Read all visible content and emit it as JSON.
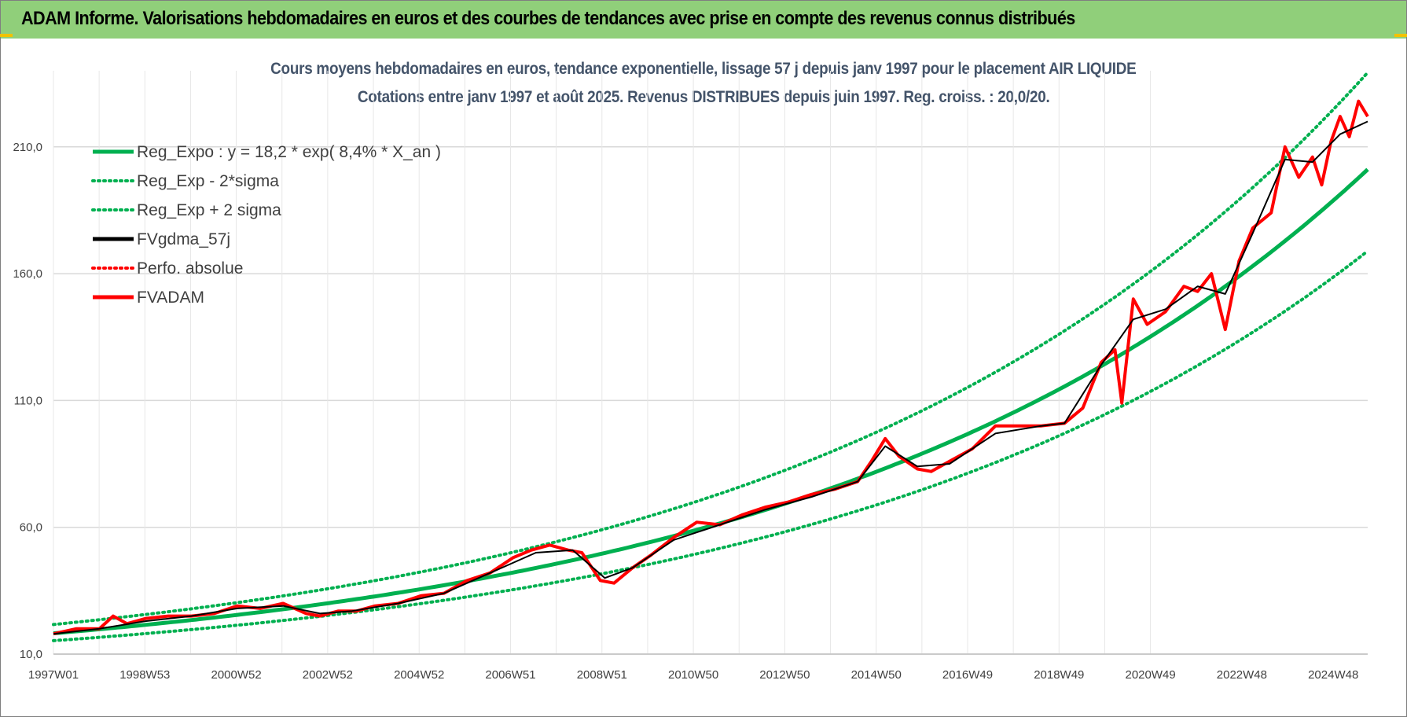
{
  "header": {
    "title": "ADAM Informe. Valorisations hebdomadaires en euros et des courbes de tendances avec prise en compte des revenus connus distribués"
  },
  "colors": {
    "header_bg": "#90cf7a",
    "reg_green": "#00b050",
    "fvgdma_black": "#000000",
    "fvadam_red": "#ff0000",
    "grid": "#d9d9d9"
  },
  "chart_data": {
    "type": "line",
    "title_line1": "Cours moyens hebdomadaires en euros, tendance exponentielle, lissage 57 j depuis janv 1997  pour le placement AIR LIQUIDE",
    "title_line2": "Cotations entre janv 1997 et août 2025. Revenus DISTRIBUES depuis juin 1997. Reg. croiss. : 20,0/20.",
    "x_tick_labels": [
      "1997W01",
      "1998W53",
      "2000W52",
      "2002W52",
      "2004W52",
      "2006W51",
      "2008W51",
      "2010W50",
      "2012W50",
      "2014W50",
      "2016W49",
      "2018W49",
      "2020W49",
      "2022W48",
      "2024W48"
    ],
    "x_range_years": [
      1997.0,
      2025.6
    ],
    "y_tick_labels": [
      "10,0",
      "60,0",
      "110,0",
      "160,0",
      "210,0"
    ],
    "y_ticks": [
      10,
      60,
      110,
      160,
      210
    ],
    "ylim": [
      10,
      240
    ],
    "grid": true,
    "legend_position": "top-left",
    "legend": [
      {
        "label": "Reg_Expo : y = 18,2 * exp( 8,4% *  X_an )",
        "color": "#00b050",
        "style": "solid"
      },
      {
        "label": "Reg_Exp - 2*sigma",
        "color": "#00b050",
        "style": "dotted"
      },
      {
        "label": "Reg_Exp + 2 sigma",
        "color": "#00b050",
        "style": "dotted"
      },
      {
        "label": "FVgdma_57j",
        "color": "#000000",
        "style": "solid"
      },
      {
        "label": "Perfo. absolue",
        "color": "#ff0000",
        "style": "dotted"
      },
      {
        "label": "FVADAM",
        "color": "#ff0000",
        "style": "solid"
      }
    ],
    "regression": {
      "a": 18.2,
      "rate": 0.084,
      "lower_factor": 0.84,
      "upper_factor": 1.19
    },
    "fvadam_series": {
      "x": [
        1997.0,
        1997.5,
        1998.0,
        1998.3,
        1998.6,
        1999.0,
        1999.5,
        2000.0,
        2000.5,
        2001.0,
        2001.5,
        2002.0,
        2002.5,
        2002.8,
        2003.2,
        2003.6,
        2004.0,
        2004.5,
        2005.0,
        2005.5,
        2006.0,
        2006.5,
        2007.0,
        2007.4,
        2007.8,
        2008.2,
        2008.5,
        2008.9,
        2009.2,
        2009.6,
        2010.0,
        2010.5,
        2011.0,
        2011.5,
        2012.0,
        2012.5,
        2013.0,
        2013.5,
        2014.0,
        2014.5,
        2014.8,
        2015.1,
        2015.4,
        2015.8,
        2016.1,
        2016.5,
        2017.0,
        2017.5,
        2018.0,
        2018.5,
        2019.0,
        2019.4,
        2019.8,
        2020.1,
        2020.25,
        2020.5,
        2020.8,
        2021.2,
        2021.6,
        2021.9,
        2022.2,
        2022.5,
        2022.8,
        2023.1,
        2023.5,
        2023.8,
        2024.1,
        2024.4,
        2024.6,
        2024.8,
        2025.0,
        2025.2,
        2025.4,
        2025.6
      ],
      "values": [
        18,
        20,
        20,
        25,
        22,
        24,
        25,
        25,
        26,
        29,
        28,
        30,
        26,
        25,
        27,
        27,
        29,
        30,
        33,
        34,
        39,
        42,
        48,
        51,
        53,
        51,
        50,
        39,
        38,
        44,
        49,
        56,
        62,
        61,
        65,
        68,
        70,
        73,
        75,
        78,
        86,
        95,
        88,
        83,
        82,
        86,
        91,
        100,
        100,
        100,
        101,
        107,
        125,
        130,
        109,
        150,
        140,
        145,
        155,
        153,
        160,
        138,
        165,
        178,
        184,
        210,
        198,
        206,
        195,
        212,
        222,
        214,
        228,
        222
      ]
    },
    "fvgdma_series": {
      "x": [
        1997.0,
        1998.0,
        1999.0,
        2000.0,
        2001.0,
        2002.0,
        2002.8,
        2003.5,
        2004.5,
        2005.5,
        2006.5,
        2007.5,
        2008.3,
        2009.0,
        2009.6,
        2010.5,
        2011.5,
        2012.5,
        2013.5,
        2014.5,
        2015.1,
        2015.8,
        2016.5,
        2017.5,
        2018.5,
        2019.0,
        2019.8,
        2020.5,
        2021.2,
        2021.9,
        2022.5,
        2023.1,
        2023.8,
        2024.4,
        2025.0,
        2025.6
      ],
      "values": [
        18,
        20,
        23,
        25,
        28,
        29,
        26,
        27,
        30,
        34,
        42,
        50,
        51,
        40,
        44,
        55,
        61,
        67,
        72,
        78,
        92,
        84,
        85,
        97,
        100,
        101,
        124,
        142,
        146,
        155,
        152,
        176,
        205,
        204,
        215,
        220
      ]
    }
  }
}
